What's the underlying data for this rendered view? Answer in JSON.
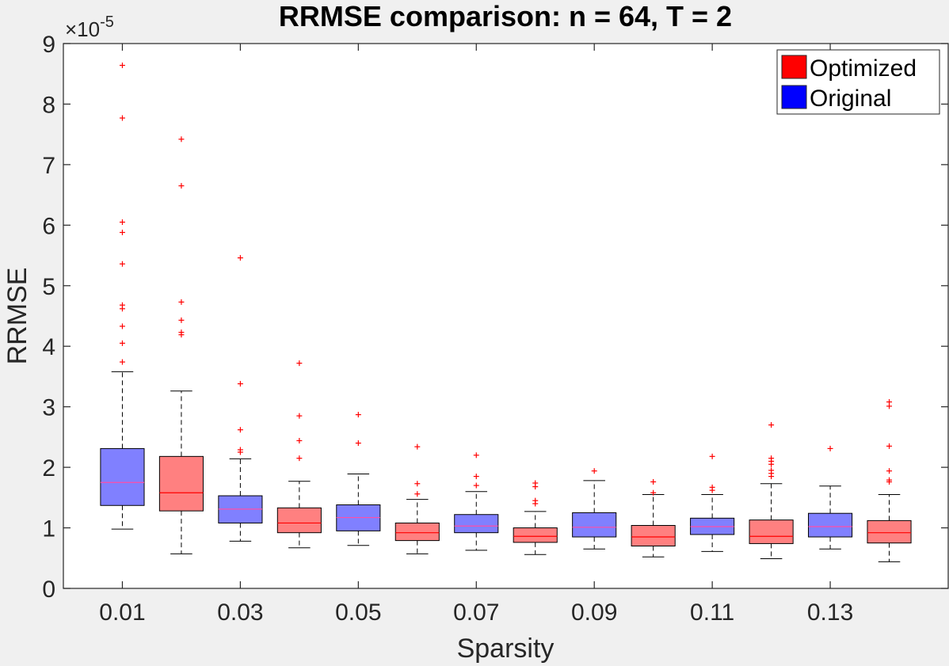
{
  "chart_data": {
    "type": "boxplot",
    "title": "RRMSE comparison: n = 64, T = 2",
    "xlabel": "Sparsity",
    "ylabel": "RRMSE",
    "y_multiplier_label": "×10",
    "y_multiplier_exponent": "-5",
    "ylim": [
      0,
      9
    ],
    "yticks": [
      "0",
      "1",
      "2",
      "3",
      "4",
      "5",
      "6",
      "7",
      "8",
      "9"
    ],
    "x_tick_labels": [
      "0.01",
      "0.03",
      "0.05",
      "0.07",
      "0.09",
      "0.11",
      "0.13"
    ],
    "legend": {
      "placement": "top-right",
      "entries": [
        {
          "label": "Optimized",
          "color": "#ff0000"
        },
        {
          "label": "Original",
          "color": "#0000ff"
        }
      ]
    },
    "colors": {
      "Optimized_box": "#ff8080",
      "Original_box": "#8080ff",
      "median_Optimized": "#ff0000",
      "median_Original": "#ff4da6",
      "outlier": "#ff0000"
    },
    "boxes": [
      {
        "x": 0.01,
        "group": "Original",
        "whisker_low": 0.98,
        "q1": 1.37,
        "median": 1.75,
        "q3": 2.31,
        "whisker_high": 3.58,
        "outliers": [
          3.74,
          4.05,
          4.33,
          4.62,
          4.68,
          5.36,
          5.88,
          6.05,
          7.77,
          8.64
        ]
      },
      {
        "x": 0.02,
        "group": "Optimized",
        "whisker_low": 0.57,
        "q1": 1.28,
        "median": 1.58,
        "q3": 2.18,
        "whisker_high": 3.26,
        "outliers": [
          4.19,
          4.23,
          4.43,
          4.73,
          6.65,
          7.42
        ]
      },
      {
        "x": 0.03,
        "group": "Original",
        "whisker_low": 0.78,
        "q1": 1.08,
        "median": 1.31,
        "q3": 1.53,
        "whisker_high": 2.14,
        "outliers": [
          2.25,
          2.29,
          2.62,
          3.38,
          5.46
        ]
      },
      {
        "x": 0.04,
        "group": "Optimized",
        "whisker_low": 0.67,
        "q1": 0.92,
        "median": 1.08,
        "q3": 1.33,
        "whisker_high": 1.77,
        "outliers": [
          2.15,
          2.44,
          2.85,
          3.72
        ]
      },
      {
        "x": 0.05,
        "group": "Original",
        "whisker_low": 0.71,
        "q1": 0.95,
        "median": 1.17,
        "q3": 1.38,
        "whisker_high": 1.89,
        "outliers": [
          2.4,
          2.87
        ]
      },
      {
        "x": 0.06,
        "group": "Optimized",
        "whisker_low": 0.57,
        "q1": 0.79,
        "median": 0.92,
        "q3": 1.08,
        "whisker_high": 1.47,
        "outliers": [
          1.56,
          1.73,
          2.34
        ]
      },
      {
        "x": 0.07,
        "group": "Original",
        "whisker_low": 0.63,
        "q1": 0.92,
        "median": 1.03,
        "q3": 1.22,
        "whisker_high": 1.6,
        "outliers": [
          1.7,
          1.85,
          2.2
        ]
      },
      {
        "x": 0.08,
        "group": "Optimized",
        "whisker_low": 0.56,
        "q1": 0.76,
        "median": 0.86,
        "q3": 1.0,
        "whisker_high": 1.27,
        "outliers": [
          1.4,
          1.45,
          1.68,
          1.74
        ]
      },
      {
        "x": 0.09,
        "group": "Original",
        "whisker_low": 0.65,
        "q1": 0.85,
        "median": 1.01,
        "q3": 1.25,
        "whisker_high": 1.78,
        "outliers": [
          1.94
        ]
      },
      {
        "x": 0.1,
        "group": "Optimized",
        "whisker_low": 0.52,
        "q1": 0.7,
        "median": 0.85,
        "q3": 1.04,
        "whisker_high": 1.55,
        "outliers": [
          1.58,
          1.76
        ]
      },
      {
        "x": 0.11,
        "group": "Original",
        "whisker_low": 0.61,
        "q1": 0.89,
        "median": 1.02,
        "q3": 1.16,
        "whisker_high": 1.55,
        "outliers": [
          1.62,
          1.67,
          2.18
        ]
      },
      {
        "x": 0.12,
        "group": "Optimized",
        "whisker_low": 0.49,
        "q1": 0.74,
        "median": 0.86,
        "q3": 1.13,
        "whisker_high": 1.73,
        "outliers": [
          1.85,
          1.9,
          1.95,
          2.05,
          2.1,
          2.15,
          2.7
        ]
      },
      {
        "x": 0.13,
        "group": "Original",
        "whisker_low": 0.65,
        "q1": 0.85,
        "median": 1.02,
        "q3": 1.24,
        "whisker_high": 1.69,
        "outliers": [
          2.31
        ]
      },
      {
        "x": 0.14,
        "group": "Optimized",
        "whisker_low": 0.44,
        "q1": 0.75,
        "median": 0.92,
        "q3": 1.12,
        "whisker_high": 1.55,
        "outliers": [
          1.76,
          1.79,
          1.94,
          2.35,
          3.01,
          3.08
        ]
      }
    ]
  }
}
